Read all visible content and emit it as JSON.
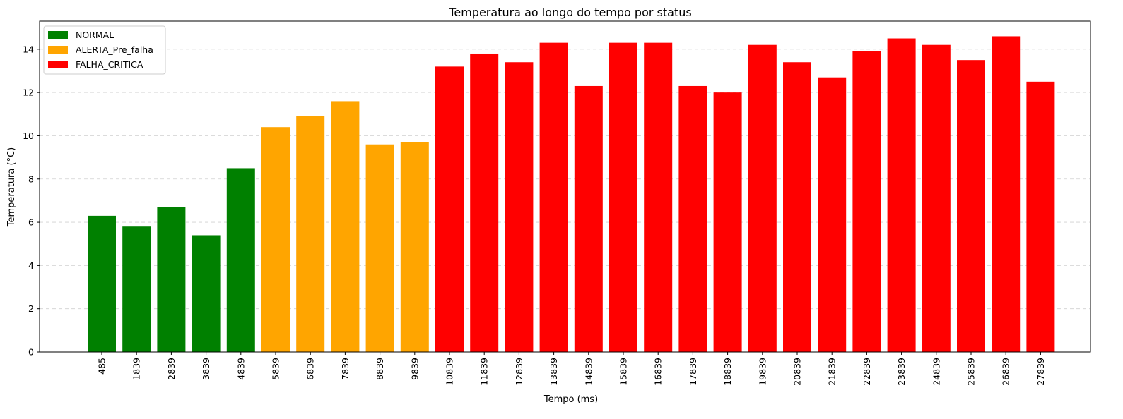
{
  "chart_data": {
    "type": "bar",
    "title": "Temperatura ao longo do tempo por status",
    "xlabel": "Tempo (ms)",
    "ylabel": "Temperatura (°C)",
    "ylim": [
      0,
      15.3
    ],
    "yticks": [
      0,
      2,
      4,
      6,
      8,
      10,
      12,
      14
    ],
    "grid": "y-dashed",
    "legend_position": "top-left",
    "categories": [
      "485",
      "1839",
      "2839",
      "3839",
      "4839",
      "5839",
      "6839",
      "7839",
      "8839",
      "9839",
      "10839",
      "11839",
      "12839",
      "13839",
      "14839",
      "15839",
      "16839",
      "17839",
      "18839",
      "19839",
      "20839",
      "21839",
      "22839",
      "23839",
      "24839",
      "25839",
      "26839",
      "27839"
    ],
    "values": [
      6.3,
      5.8,
      6.7,
      5.4,
      8.5,
      10.4,
      10.9,
      11.6,
      9.6,
      9.7,
      13.2,
      13.8,
      13.4,
      14.3,
      12.3,
      14.3,
      14.3,
      12.3,
      12.0,
      14.2,
      13.4,
      12.7,
      13.9,
      14.5,
      14.2,
      13.5,
      14.6,
      12.5
    ],
    "status": [
      "NORMAL",
      "NORMAL",
      "NORMAL",
      "NORMAL",
      "NORMAL",
      "ALERTA_Pre_falha",
      "ALERTA_Pre_falha",
      "ALERTA_Pre_falha",
      "ALERTA_Pre_falha",
      "ALERTA_Pre_falha",
      "FALHA_CRITICA",
      "FALHA_CRITICA",
      "FALHA_CRITICA",
      "FALHA_CRITICA",
      "FALHA_CRITICA",
      "FALHA_CRITICA",
      "FALHA_CRITICA",
      "FALHA_CRITICA",
      "FALHA_CRITICA",
      "FALHA_CRITICA",
      "FALHA_CRITICA",
      "FALHA_CRITICA",
      "FALHA_CRITICA",
      "FALHA_CRITICA",
      "FALHA_CRITICA",
      "FALHA_CRITICA",
      "FALHA_CRITICA",
      "FALHA_CRITICA"
    ],
    "legend": [
      {
        "name": "NORMAL",
        "color": "#008000"
      },
      {
        "name": "ALERTA_Pre_falha",
        "color": "#FFA500"
      },
      {
        "name": "FALHA_CRITICA",
        "color": "#FF0000"
      }
    ]
  }
}
